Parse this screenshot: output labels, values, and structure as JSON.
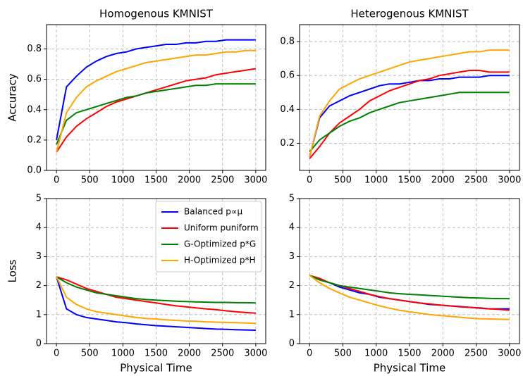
{
  "chart_data": [
    {
      "type": "line",
      "title": "Homogenous KMNIST",
      "ylabel": "Accuracy",
      "x": [
        0,
        150,
        300,
        450,
        600,
        750,
        900,
        1050,
        1200,
        1350,
        1500,
        1650,
        1800,
        1950,
        2100,
        2250,
        2400,
        2550,
        2700,
        2850,
        3000
      ],
      "xlim": [
        -150,
        3150
      ],
      "xticks": [
        0,
        500,
        1000,
        1500,
        2000,
        2500,
        3000
      ],
      "ylim": [
        0,
        0.96
      ],
      "yticks": [
        {
          "value": 0,
          "label": "0.0"
        },
        0.2,
        0.4,
        0.6,
        0.8
      ],
      "grid": true,
      "series": [
        {
          "color": "#0000ff",
          "values": [
            0.2,
            0.55,
            0.62,
            0.68,
            0.72,
            0.75,
            0.77,
            0.78,
            0.8,
            0.81,
            0.82,
            0.83,
            0.83,
            0.84,
            0.84,
            0.85,
            0.85,
            0.86,
            0.86,
            0.86,
            0.86
          ]
        },
        {
          "color": "#ff0000",
          "values": [
            0.12,
            0.22,
            0.29,
            0.34,
            0.38,
            0.42,
            0.45,
            0.47,
            0.49,
            0.51,
            0.53,
            0.55,
            0.57,
            0.59,
            0.6,
            0.61,
            0.63,
            0.64,
            0.65,
            0.66,
            0.67
          ]
        },
        {
          "color": "#008000",
          "values": [
            0.17,
            0.33,
            0.38,
            0.4,
            0.42,
            0.44,
            0.46,
            0.48,
            0.49,
            0.51,
            0.52,
            0.53,
            0.54,
            0.55,
            0.56,
            0.56,
            0.57,
            0.57,
            0.57,
            0.57,
            0.57
          ]
        },
        {
          "color": "#ffa500",
          "values": [
            0.12,
            0.38,
            0.48,
            0.55,
            0.59,
            0.62,
            0.65,
            0.67,
            0.69,
            0.71,
            0.72,
            0.73,
            0.74,
            0.75,
            0.76,
            0.76,
            0.77,
            0.78,
            0.78,
            0.79,
            0.79
          ]
        }
      ]
    },
    {
      "type": "line",
      "title": "Heterogenous KMNIST",
      "x": [
        0,
        150,
        300,
        450,
        600,
        750,
        900,
        1050,
        1200,
        1350,
        1500,
        1650,
        1800,
        1950,
        2100,
        2250,
        2400,
        2550,
        2700,
        2850,
        3000
      ],
      "xlim": [
        -150,
        3150
      ],
      "xticks": [
        0,
        500,
        1000,
        1500,
        2000,
        2500,
        3000
      ],
      "ylim": [
        0.04,
        0.9
      ],
      "yticks": [
        0.2,
        0.4,
        0.6,
        0.8
      ],
      "grid": true,
      "series": [
        {
          "color": "#0000ff",
          "values": [
            0.12,
            0.35,
            0.42,
            0.45,
            0.48,
            0.5,
            0.52,
            0.54,
            0.55,
            0.55,
            0.56,
            0.57,
            0.57,
            0.58,
            0.58,
            0.59,
            0.59,
            0.59,
            0.6,
            0.6,
            0.6
          ]
        },
        {
          "color": "#ff0000",
          "values": [
            0.11,
            0.18,
            0.26,
            0.32,
            0.36,
            0.4,
            0.45,
            0.48,
            0.51,
            0.53,
            0.55,
            0.57,
            0.58,
            0.6,
            0.61,
            0.62,
            0.63,
            0.63,
            0.62,
            0.62,
            0.62
          ]
        },
        {
          "color": "#008000",
          "values": [
            0.15,
            0.22,
            0.26,
            0.3,
            0.33,
            0.35,
            0.38,
            0.4,
            0.42,
            0.44,
            0.45,
            0.46,
            0.47,
            0.48,
            0.49,
            0.5,
            0.5,
            0.5,
            0.5,
            0.5,
            0.5
          ]
        },
        {
          "color": "#ffa500",
          "values": [
            0.12,
            0.36,
            0.45,
            0.52,
            0.55,
            0.58,
            0.6,
            0.62,
            0.64,
            0.66,
            0.68,
            0.69,
            0.7,
            0.71,
            0.72,
            0.73,
            0.74,
            0.74,
            0.75,
            0.75,
            0.75
          ]
        }
      ]
    },
    {
      "type": "line",
      "ylabel": "Loss",
      "xlabel": "Physical Time",
      "legend": "upper right",
      "x": [
        0,
        150,
        300,
        450,
        600,
        750,
        900,
        1050,
        1200,
        1350,
        1500,
        1650,
        1800,
        1950,
        2100,
        2250,
        2400,
        2550,
        2700,
        2850,
        3000
      ],
      "xlim": [
        -150,
        3150
      ],
      "xticks": [
        0,
        500,
        1000,
        1500,
        2000,
        2500,
        3000
      ],
      "ylim": [
        0,
        5
      ],
      "yticks": [
        0,
        1,
        2,
        3,
        4,
        5
      ],
      "grid": true,
      "series": [
        {
          "name": "Balanced p∝μ",
          "color": "#0000ff",
          "values": [
            2.3,
            1.2,
            1.0,
            0.9,
            0.85,
            0.8,
            0.75,
            0.72,
            0.68,
            0.65,
            0.62,
            0.6,
            0.58,
            0.56,
            0.54,
            0.52,
            0.5,
            0.49,
            0.48,
            0.47,
            0.46
          ]
        },
        {
          "name": "Uniform puniform",
          "color": "#ff0000",
          "values": [
            2.3,
            2.2,
            2.05,
            1.9,
            1.8,
            1.7,
            1.6,
            1.55,
            1.5,
            1.45,
            1.4,
            1.35,
            1.3,
            1.27,
            1.23,
            1.2,
            1.17,
            1.13,
            1.1,
            1.07,
            1.05
          ]
        },
        {
          "name": "G-Optimized p*G",
          "color": "#008000",
          "values": [
            2.3,
            2.1,
            1.95,
            1.85,
            1.75,
            1.7,
            1.65,
            1.6,
            1.55,
            1.52,
            1.5,
            1.48,
            1.46,
            1.45,
            1.44,
            1.43,
            1.42,
            1.42,
            1.41,
            1.41,
            1.4
          ]
        },
        {
          "name": "H-Optimized p*H",
          "color": "#ffa500",
          "values": [
            2.3,
            1.6,
            1.35,
            1.2,
            1.1,
            1.05,
            1.0,
            0.95,
            0.9,
            0.87,
            0.85,
            0.82,
            0.8,
            0.78,
            0.77,
            0.75,
            0.74,
            0.73,
            0.72,
            0.71,
            0.7
          ]
        }
      ]
    },
    {
      "type": "line",
      "xlabel": "Physical Time",
      "x": [
        0,
        150,
        300,
        450,
        600,
        750,
        900,
        1050,
        1200,
        1350,
        1500,
        1650,
        1800,
        1950,
        2100,
        2250,
        2400,
        2550,
        2700,
        2850,
        3000
      ],
      "xlim": [
        -150,
        3150
      ],
      "xticks": [
        0,
        500,
        1000,
        1500,
        2000,
        2500,
        3000
      ],
      "ylim": [
        0,
        5
      ],
      "yticks": [
        0,
        1,
        2,
        3,
        4,
        5
      ],
      "grid": true,
      "series": [
        {
          "color": "#0000ff",
          "values": [
            2.35,
            2.2,
            2.1,
            1.95,
            1.85,
            1.75,
            1.7,
            1.6,
            1.55,
            1.5,
            1.45,
            1.4,
            1.35,
            1.33,
            1.3,
            1.28,
            1.25,
            1.23,
            1.2,
            1.2,
            1.2
          ]
        },
        {
          "color": "#ff0000",
          "values": [
            2.35,
            2.25,
            2.1,
            2.0,
            1.9,
            1.8,
            1.7,
            1.62,
            1.55,
            1.5,
            1.45,
            1.4,
            1.37,
            1.33,
            1.3,
            1.27,
            1.25,
            1.22,
            1.2,
            1.18,
            1.15
          ]
        },
        {
          "color": "#008000",
          "values": [
            2.35,
            2.2,
            2.1,
            2.0,
            1.95,
            1.9,
            1.85,
            1.8,
            1.75,
            1.72,
            1.7,
            1.68,
            1.66,
            1.64,
            1.62,
            1.6,
            1.58,
            1.57,
            1.56,
            1.55,
            1.55
          ]
        },
        {
          "color": "#ffa500",
          "values": [
            2.35,
            2.1,
            1.9,
            1.75,
            1.6,
            1.5,
            1.4,
            1.3,
            1.22,
            1.15,
            1.1,
            1.05,
            1.0,
            0.97,
            0.94,
            0.91,
            0.88,
            0.86,
            0.85,
            0.84,
            0.83
          ]
        }
      ]
    }
  ]
}
